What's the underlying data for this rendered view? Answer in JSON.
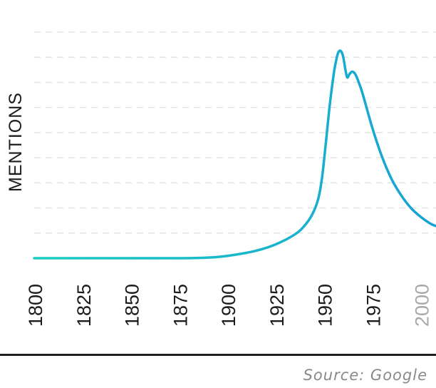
{
  "chart_data": {
    "type": "line",
    "ylabel": "MENTIONS",
    "xlabel": "",
    "title": "",
    "x_ticks": [
      "1800",
      "1825",
      "1850",
      "1875",
      "1900",
      "1925",
      "1950",
      "1975",
      "2000"
    ],
    "future_ticks": [
      "2000"
    ],
    "xlim": [
      1800,
      2008
    ],
    "ylim": [
      0,
      9
    ],
    "grid": true,
    "y_grid": [
      1,
      2,
      3,
      4,
      5,
      6,
      7,
      8,
      9
    ],
    "colors": {
      "line_start": "#1ccdc0",
      "line_end": "#15a2d6",
      "grid": "#e2e2e2",
      "text": "#1c1c1c"
    },
    "series": [
      {
        "x": [
          1800,
          1825,
          1850,
          1875,
          1885,
          1895,
          1905,
          1915,
          1925,
          1935,
          1940,
          1944,
          1947,
          1949,
          1951,
          1953,
          1955,
          1956,
          1957,
          1958,
          1959,
          1960,
          1961,
          1962,
          1963,
          1964,
          1965,
          1966,
          1967,
          1968,
          1970,
          1975,
          1980,
          1985,
          1990,
          1995,
          2000,
          2005,
          2008
        ],
        "y": [
          0,
          0,
          0,
          0,
          0.01,
          0.05,
          0.15,
          0.3,
          0.55,
          0.95,
          1.3,
          1.75,
          2.35,
          3.2,
          4.6,
          6.1,
          7.3,
          7.75,
          8.1,
          8.25,
          8.22,
          8.0,
          7.55,
          7.2,
          7.3,
          7.4,
          7.42,
          7.35,
          7.2,
          7.0,
          6.55,
          5.2,
          4.05,
          3.15,
          2.5,
          2.0,
          1.65,
          1.38,
          1.28
        ]
      }
    ]
  },
  "source": "Source: Google"
}
